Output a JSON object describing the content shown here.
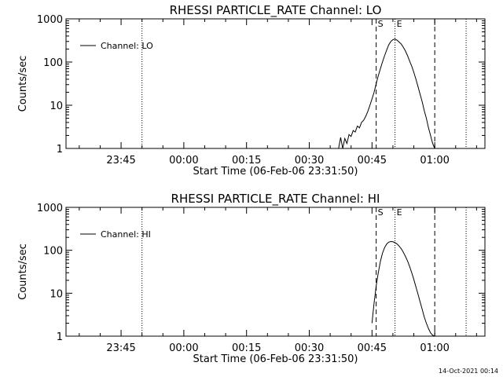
{
  "chart_data": [
    {
      "type": "line",
      "title": "RHESSI PARTICLE_RATE Channel: LO",
      "xlabel": "Start Time (06-Feb-06 23:31:50)",
      "ylabel": "Counts/sec",
      "yscale": "log",
      "ylim": [
        1,
        1000
      ],
      "xlim": [
        "23:31:50",
        "01:12:00"
      ],
      "x_ticks": [
        "23:45",
        "00:00",
        "00:15",
        "00:30",
        "00:45",
        "01:00"
      ],
      "y_ticks": [
        "1",
        "10",
        "100",
        "1000"
      ],
      "legend": {
        "position": "top-left",
        "entries": [
          "Channel: LO"
        ]
      },
      "markers": [
        {
          "label": "S",
          "time": "00:46:00",
          "style": "dashed"
        },
        {
          "label": "E",
          "time": "00:50:30",
          "style": "dotted"
        },
        {
          "label": "",
          "time": "01:00:00",
          "style": "dashed"
        },
        {
          "label": "",
          "time": "23:50:00",
          "style": "dotted"
        },
        {
          "label": "",
          "time": "01:07:30",
          "style": "dotted"
        }
      ],
      "series": [
        {
          "name": "Channel: LO",
          "x": [
            "00:37:00",
            "00:37:30",
            "00:38:00",
            "00:38:30",
            "00:39:00",
            "00:39:30",
            "00:40:00",
            "00:40:30",
            "00:41:00",
            "00:41:30",
            "00:42:00",
            "00:42:30",
            "00:43:00",
            "00:43:30",
            "00:44:00",
            "00:44:30",
            "00:45:00",
            "00:45:30",
            "00:46:00",
            "00:46:30",
            "00:47:00",
            "00:47:30",
            "00:48:00",
            "00:48:30",
            "00:49:00",
            "00:49:30",
            "00:50:00",
            "00:50:30",
            "00:51:00",
            "00:51:30",
            "00:52:00",
            "00:52:30",
            "00:53:00",
            "00:53:30",
            "00:54:00",
            "00:54:30",
            "00:55:00",
            "00:55:30",
            "00:56:00",
            "00:56:30",
            "00:57:00",
            "00:57:30",
            "00:58:00",
            "00:58:30",
            "00:59:00",
            "00:59:30",
            "01:00:00"
          ],
          "y": [
            1,
            1.8,
            1,
            1.7,
            1.3,
            2.1,
            1.9,
            2.6,
            2.4,
            3.3,
            3.0,
            4.0,
            4.5,
            5.5,
            7.2,
            10,
            14,
            20,
            32,
            48,
            70,
            100,
            140,
            190,
            250,
            300,
            330,
            340,
            320,
            290,
            260,
            220,
            180,
            140,
            105,
            80,
            58,
            40,
            27,
            18,
            12,
            7.5,
            5,
            3,
            2,
            1.3,
            1
          ]
        }
      ]
    },
    {
      "type": "line",
      "title": "RHESSI PARTICLE_RATE Channel: HI",
      "xlabel": "Start Time (06-Feb-06 23:31:50)",
      "ylabel": "Counts/sec",
      "yscale": "log",
      "ylim": [
        1,
        1000
      ],
      "xlim": [
        "23:31:50",
        "01:12:00"
      ],
      "x_ticks": [
        "23:45",
        "00:00",
        "00:15",
        "00:30",
        "00:45",
        "01:00"
      ],
      "y_ticks": [
        "1",
        "10",
        "100",
        "1000"
      ],
      "legend": {
        "position": "top-left",
        "entries": [
          "Channel: HI"
        ]
      },
      "markers": [
        {
          "label": "S",
          "time": "00:46:00",
          "style": "dashed"
        },
        {
          "label": "E",
          "time": "00:50:30",
          "style": "dotted"
        },
        {
          "label": "",
          "time": "01:00:00",
          "style": "dashed"
        },
        {
          "label": "",
          "time": "23:50:00",
          "style": "dotted"
        },
        {
          "label": "",
          "time": "01:07:30",
          "style": "dotted"
        }
      ],
      "series": [
        {
          "name": "Channel: HI",
          "x": [
            "00:45:00",
            "00:45:30",
            "00:46:00",
            "00:46:30",
            "00:47:00",
            "00:47:30",
            "00:48:00",
            "00:48:30",
            "00:49:00",
            "00:49:30",
            "00:50:00",
            "00:50:30",
            "00:51:00",
            "00:51:30",
            "00:52:00",
            "00:52:30",
            "00:53:00",
            "00:53:30",
            "00:54:00",
            "00:54:30",
            "00:55:00",
            "00:55:30",
            "00:56:00",
            "00:56:30",
            "00:57:00",
            "00:57:30",
            "00:58:00",
            "00:58:30",
            "00:59:00",
            "00:59:30",
            "01:00:00"
          ],
          "y": [
            2,
            6,
            15,
            30,
            55,
            85,
            115,
            140,
            155,
            160,
            158,
            150,
            140,
            125,
            108,
            90,
            72,
            56,
            42,
            30,
            21,
            14,
            9.5,
            6.3,
            4.2,
            2.8,
            2,
            1.5,
            1.2,
            1.05,
            1
          ]
        }
      ]
    }
  ],
  "footer": {
    "timestamp": "14-Oct-2021 00:14"
  }
}
